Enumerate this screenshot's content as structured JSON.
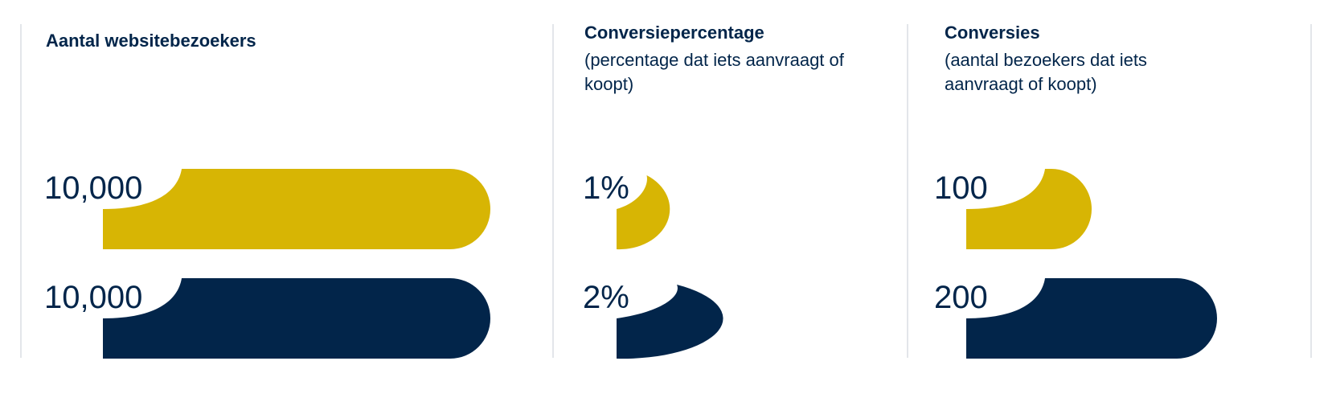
{
  "chart_data": [
    {
      "type": "bar",
      "title": "Aantal websitebezoekers",
      "subtitle": "",
      "series": [
        {
          "name": "scenario-1",
          "value": 10000,
          "label": "10,000",
          "color": "#d7b504"
        },
        {
          "name": "scenario-2",
          "value": 10000,
          "label": "10,000",
          "color": "#02254a"
        }
      ]
    },
    {
      "type": "bar",
      "title": "Conversiepercentage",
      "subtitle": "(percentage dat iets aanvraagt of koopt)",
      "series": [
        {
          "name": "scenario-1",
          "value": 1,
          "label": "1%",
          "color": "#d7b504"
        },
        {
          "name": "scenario-2",
          "value": 2,
          "label": "2%",
          "color": "#02254a"
        }
      ]
    },
    {
      "type": "bar",
      "title": "Conversies",
      "subtitle": "(aantal bezoekers dat iets aanvraagt of koopt)",
      "series": [
        {
          "name": "scenario-1",
          "value": 100,
          "label": "100",
          "color": "#d7b504"
        },
        {
          "name": "scenario-2",
          "value": 200,
          "label": "200",
          "color": "#02254a"
        }
      ]
    }
  ]
}
